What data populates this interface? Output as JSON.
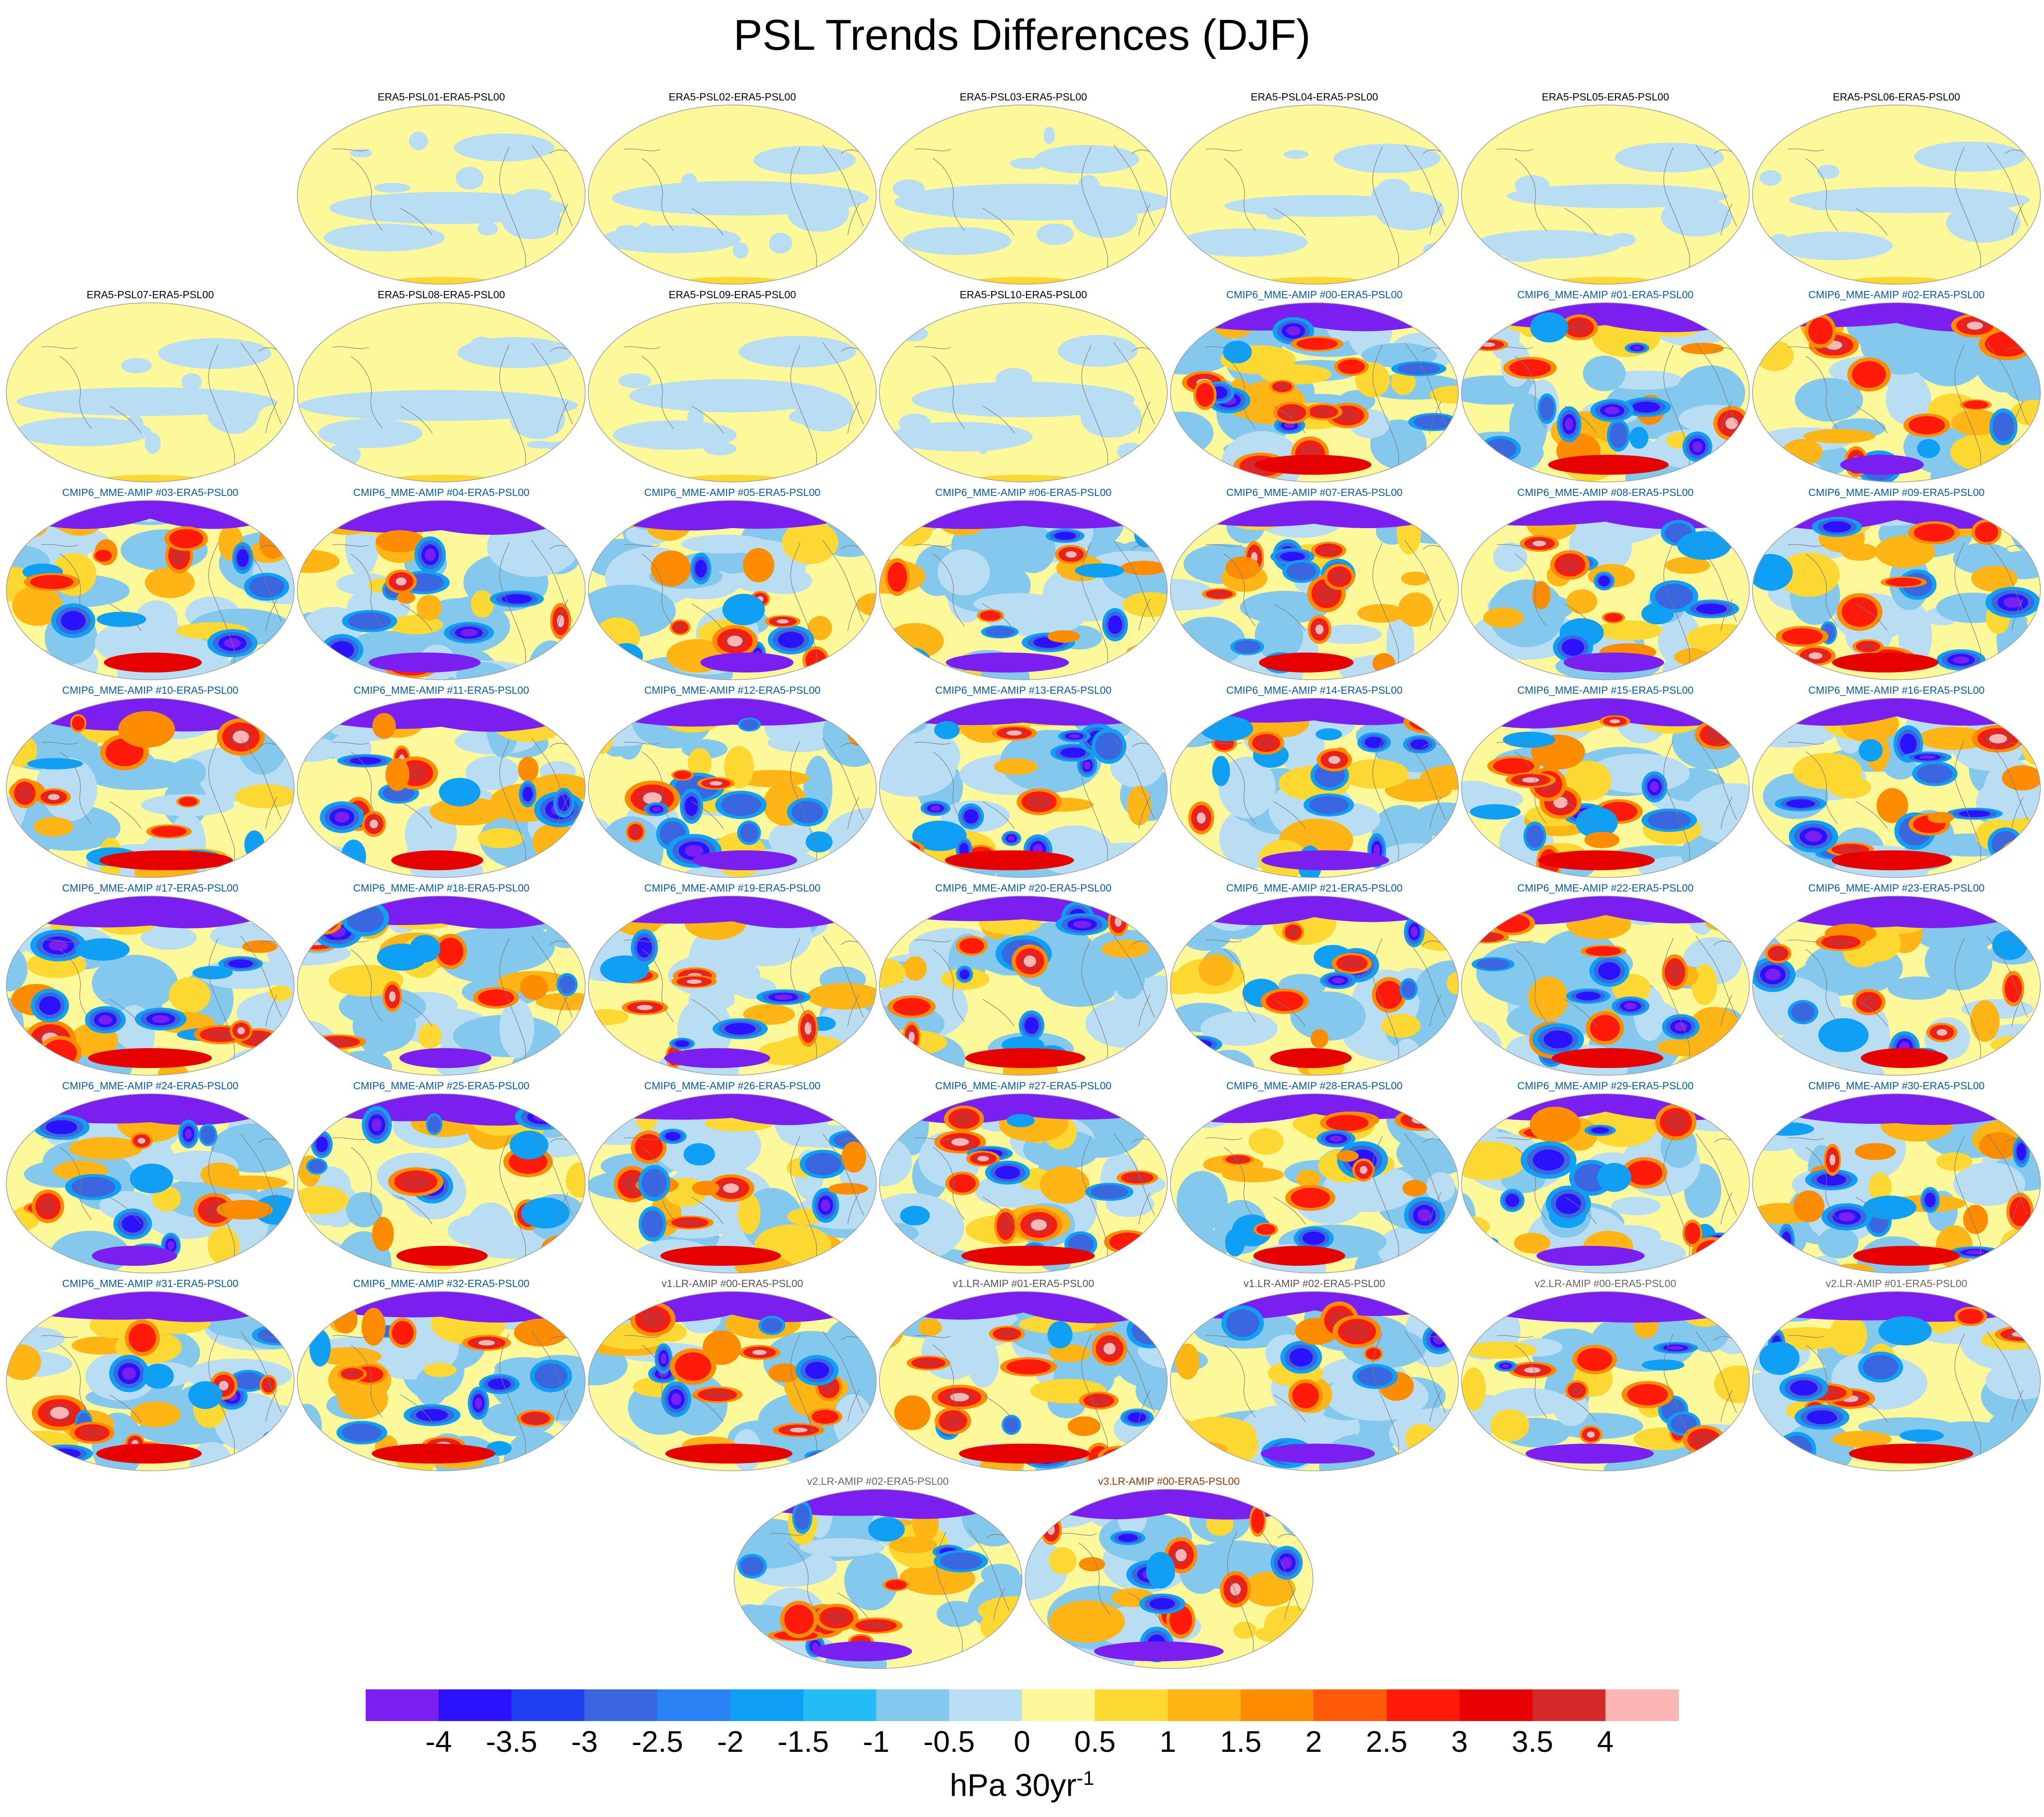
{
  "title": "PSL Trends Differences (DJF)",
  "label_colors": {
    "era5": "#000000",
    "cmip6": "#0a5aa0",
    "v1": "#555555",
    "v2": "#666666",
    "v3": "#8b3a0a"
  },
  "panels": [
    {
      "label": "ERA5-PSL01-ERA5-PSL00",
      "group": "era5",
      "row": 0,
      "col": 1
    },
    {
      "label": "ERA5-PSL02-ERA5-PSL00",
      "group": "era5",
      "row": 0,
      "col": 2
    },
    {
      "label": "ERA5-PSL03-ERA5-PSL00",
      "group": "era5",
      "row": 0,
      "col": 3
    },
    {
      "label": "ERA5-PSL04-ERA5-PSL00",
      "group": "era5",
      "row": 0,
      "col": 4
    },
    {
      "label": "ERA5-PSL05-ERA5-PSL00",
      "group": "era5",
      "row": 0,
      "col": 5
    },
    {
      "label": "ERA5-PSL06-ERA5-PSL00",
      "group": "era5",
      "row": 0,
      "col": 6
    },
    {
      "label": "ERA5-PSL07-ERA5-PSL00",
      "group": "era5",
      "row": 1,
      "col": 0
    },
    {
      "label": "ERA5-PSL08-ERA5-PSL00",
      "group": "era5",
      "row": 1,
      "col": 1
    },
    {
      "label": "ERA5-PSL09-ERA5-PSL00",
      "group": "era5",
      "row": 1,
      "col": 2
    },
    {
      "label": "ERA5-PSL10-ERA5-PSL00",
      "group": "era5",
      "row": 1,
      "col": 3
    },
    {
      "label": "CMIP6_MME-AMIP  #00-ERA5-PSL00",
      "group": "cmip6",
      "row": 1,
      "col": 4
    },
    {
      "label": "CMIP6_MME-AMIP  #01-ERA5-PSL00",
      "group": "cmip6",
      "row": 1,
      "col": 5
    },
    {
      "label": "CMIP6_MME-AMIP  #02-ERA5-PSL00",
      "group": "cmip6",
      "row": 1,
      "col": 6
    },
    {
      "label": "CMIP6_MME-AMIP  #03-ERA5-PSL00",
      "group": "cmip6",
      "row": 2,
      "col": 0
    },
    {
      "label": "CMIP6_MME-AMIP  #04-ERA5-PSL00",
      "group": "cmip6",
      "row": 2,
      "col": 1
    },
    {
      "label": "CMIP6_MME-AMIP  #05-ERA5-PSL00",
      "group": "cmip6",
      "row": 2,
      "col": 2
    },
    {
      "label": "CMIP6_MME-AMIP  #06-ERA5-PSL00",
      "group": "cmip6",
      "row": 2,
      "col": 3
    },
    {
      "label": "CMIP6_MME-AMIP  #07-ERA5-PSL00",
      "group": "cmip6",
      "row": 2,
      "col": 4
    },
    {
      "label": "CMIP6_MME-AMIP  #08-ERA5-PSL00",
      "group": "cmip6",
      "row": 2,
      "col": 5
    },
    {
      "label": "CMIP6_MME-AMIP  #09-ERA5-PSL00",
      "group": "cmip6",
      "row": 2,
      "col": 6
    },
    {
      "label": "CMIP6_MME-AMIP  #10-ERA5-PSL00",
      "group": "cmip6",
      "row": 3,
      "col": 0
    },
    {
      "label": "CMIP6_MME-AMIP  #11-ERA5-PSL00",
      "group": "cmip6",
      "row": 3,
      "col": 1
    },
    {
      "label": "CMIP6_MME-AMIP  #12-ERA5-PSL00",
      "group": "cmip6",
      "row": 3,
      "col": 2
    },
    {
      "label": "CMIP6_MME-AMIP  #13-ERA5-PSL00",
      "group": "cmip6",
      "row": 3,
      "col": 3
    },
    {
      "label": "CMIP6_MME-AMIP  #14-ERA5-PSL00",
      "group": "cmip6",
      "row": 3,
      "col": 4
    },
    {
      "label": "CMIP6_MME-AMIP  #15-ERA5-PSL00",
      "group": "cmip6",
      "row": 3,
      "col": 5
    },
    {
      "label": "CMIP6_MME-AMIP  #16-ERA5-PSL00",
      "group": "cmip6",
      "row": 3,
      "col": 6
    },
    {
      "label": "CMIP6_MME-AMIP  #17-ERA5-PSL00",
      "group": "cmip6",
      "row": 4,
      "col": 0
    },
    {
      "label": "CMIP6_MME-AMIP  #18-ERA5-PSL00",
      "group": "cmip6",
      "row": 4,
      "col": 1
    },
    {
      "label": "CMIP6_MME-AMIP  #19-ERA5-PSL00",
      "group": "cmip6",
      "row": 4,
      "col": 2
    },
    {
      "label": "CMIP6_MME-AMIP  #20-ERA5-PSL00",
      "group": "cmip6",
      "row": 4,
      "col": 3
    },
    {
      "label": "CMIP6_MME-AMIP  #21-ERA5-PSL00",
      "group": "cmip6",
      "row": 4,
      "col": 4
    },
    {
      "label": "CMIP6_MME-AMIP  #22-ERA5-PSL00",
      "group": "cmip6",
      "row": 4,
      "col": 5
    },
    {
      "label": "CMIP6_MME-AMIP  #23-ERA5-PSL00",
      "group": "cmip6",
      "row": 4,
      "col": 6
    },
    {
      "label": "CMIP6_MME-AMIP  #24-ERA5-PSL00",
      "group": "cmip6",
      "row": 5,
      "col": 0
    },
    {
      "label": "CMIP6_MME-AMIP  #25-ERA5-PSL00",
      "group": "cmip6",
      "row": 5,
      "col": 1
    },
    {
      "label": "CMIP6_MME-AMIP  #26-ERA5-PSL00",
      "group": "cmip6",
      "row": 5,
      "col": 2
    },
    {
      "label": "CMIP6_MME-AMIP  #27-ERA5-PSL00",
      "group": "cmip6",
      "row": 5,
      "col": 3
    },
    {
      "label": "CMIP6_MME-AMIP  #28-ERA5-PSL00",
      "group": "cmip6",
      "row": 5,
      "col": 4
    },
    {
      "label": "CMIP6_MME-AMIP  #29-ERA5-PSL00",
      "group": "cmip6",
      "row": 5,
      "col": 5
    },
    {
      "label": "CMIP6_MME-AMIP  #30-ERA5-PSL00",
      "group": "cmip6",
      "row": 5,
      "col": 6
    },
    {
      "label": "CMIP6_MME-AMIP  #31-ERA5-PSL00",
      "group": "cmip6",
      "row": 6,
      "col": 0
    },
    {
      "label": "CMIP6_MME-AMIP  #32-ERA5-PSL00",
      "group": "cmip6",
      "row": 6,
      "col": 1
    },
    {
      "label": "v1.LR-AMIP  #00-ERA5-PSL00",
      "group": "v1",
      "row": 6,
      "col": 2
    },
    {
      "label": "v1.LR-AMIP  #01-ERA5-PSL00",
      "group": "v1",
      "row": 6,
      "col": 3
    },
    {
      "label": "v1.LR-AMIP  #02-ERA5-PSL00",
      "group": "v1",
      "row": 6,
      "col": 4
    },
    {
      "label": "v2.LR-AMIP  #00-ERA5-PSL00",
      "group": "v2",
      "row": 6,
      "col": 5
    },
    {
      "label": "v2.LR-AMIP  #01-ERA5-PSL00",
      "group": "v2",
      "row": 6,
      "col": 6
    },
    {
      "label": "v2.LR-AMIP  #02-ERA5-PSL00",
      "group": "v2",
      "row": 7,
      "col": 2.5
    },
    {
      "label": "v3.LR-AMIP  #00-ERA5-PSL00",
      "group": "v3",
      "row": 7,
      "col": 3.5
    }
  ],
  "colorbar": {
    "colors": [
      "#7a1ff0",
      "#2a12ff",
      "#1f3ff0",
      "#3a66e0",
      "#2a82f5",
      "#0fa0f5",
      "#23bcf5",
      "#85c8ee",
      "#b9def4",
      "#fdf89a",
      "#fed832",
      "#feb515",
      "#fe8c00",
      "#fe5a0a",
      "#ff1a0a",
      "#e60000",
      "#d42a2a",
      "#fdb5b5"
    ],
    "labels": [
      "-4",
      "-3.5",
      "-3",
      "-2.5",
      "-2",
      "-1.5",
      "-1",
      "-0.5",
      "0",
      "0.5",
      "1",
      "1.5",
      "2",
      "2.5",
      "3",
      "3.5",
      "4"
    ],
    "unit_base": "hPa 30yr",
    "unit_exp": "-1"
  }
}
